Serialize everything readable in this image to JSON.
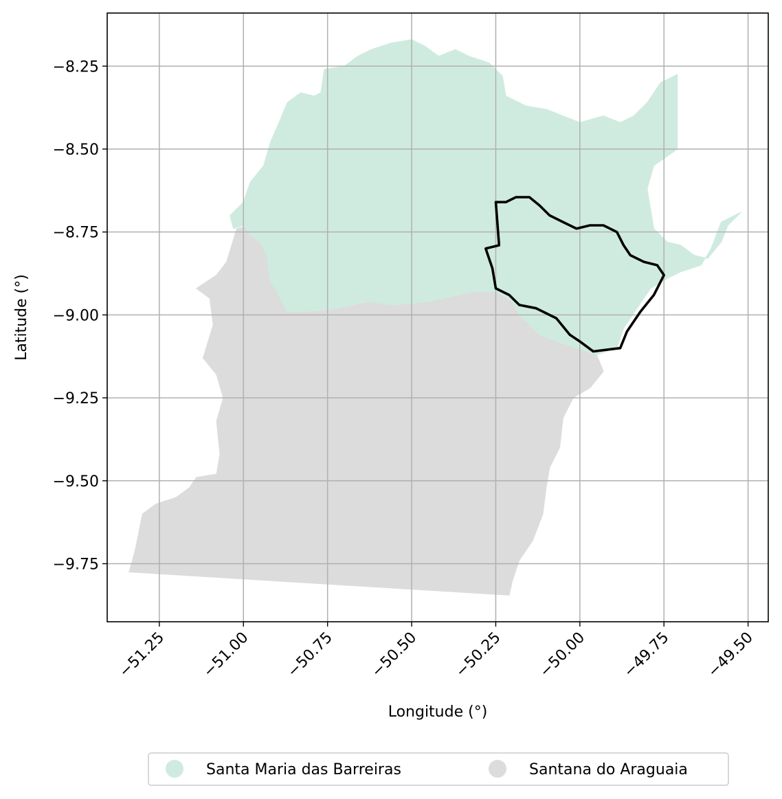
{
  "chart_data": {
    "type": "map",
    "title": "",
    "xlabel": "Longitude (°)",
    "ylabel": "Latitude (°)",
    "xlim": [
      -51.405,
      -49.44
    ],
    "ylim": [
      -9.925,
      -8.09
    ],
    "grid": true,
    "legend_placement": "bottom-center",
    "x_ticks": [
      -51.25,
      -51.0,
      -50.75,
      -50.5,
      -50.25,
      -50.0,
      -49.75,
      -49.5
    ],
    "x_tick_labels": [
      "−51.25",
      "−51.00",
      "−50.75",
      "−50.50",
      "−50.25",
      "−50.00",
      "−49.75",
      "−49.50"
    ],
    "y_ticks": [
      -8.25,
      -8.5,
      -8.75,
      -9.0,
      -9.25,
      -9.5,
      -9.75
    ],
    "y_tick_labels": [
      "−8.25",
      "−8.50",
      "−8.75",
      "−9.00",
      "−9.25",
      "−9.50",
      "−9.75"
    ],
    "regions": [
      {
        "name": "Santa Maria das Barreiras",
        "color": "#cfebdf",
        "boundary": [
          [
            -51.04,
            -8.7
          ],
          [
            -51.0,
            -8.66
          ],
          [
            -50.98,
            -8.6
          ],
          [
            -50.94,
            -8.55
          ],
          [
            -50.92,
            -8.48
          ],
          [
            -50.89,
            -8.41
          ],
          [
            -50.87,
            -8.36
          ],
          [
            -50.83,
            -8.33
          ],
          [
            -50.79,
            -8.34
          ],
          [
            -50.77,
            -8.33
          ],
          [
            -50.76,
            -8.26
          ],
          [
            -50.7,
            -8.25
          ],
          [
            -50.66,
            -8.22
          ],
          [
            -50.62,
            -8.2
          ],
          [
            -50.56,
            -8.18
          ],
          [
            -50.5,
            -8.17
          ],
          [
            -50.46,
            -8.19
          ],
          [
            -50.42,
            -8.22
          ],
          [
            -50.37,
            -8.2
          ],
          [
            -50.33,
            -8.22
          ],
          [
            -50.27,
            -8.24
          ],
          [
            -50.23,
            -8.28
          ],
          [
            -50.22,
            -8.34
          ],
          [
            -50.16,
            -8.37
          ],
          [
            -50.1,
            -8.38
          ],
          [
            -50.05,
            -8.4
          ],
          [
            -50.0,
            -8.42
          ],
          [
            -49.93,
            -8.4
          ],
          [
            -49.88,
            -8.42
          ],
          [
            -49.84,
            -8.4
          ],
          [
            -49.8,
            -8.36
          ],
          [
            -49.76,
            -8.3
          ],
          [
            -49.71,
            -8.275
          ],
          [
            -49.71,
            -8.5
          ],
          [
            -49.78,
            -8.55
          ],
          [
            -49.8,
            -8.62
          ],
          [
            -49.79,
            -8.68
          ],
          [
            -49.78,
            -8.74
          ],
          [
            -49.74,
            -8.78
          ],
          [
            -49.7,
            -8.79
          ],
          [
            -49.66,
            -8.82
          ],
          [
            -49.62,
            -8.83
          ],
          [
            -49.58,
            -8.78
          ],
          [
            -49.56,
            -8.73
          ],
          [
            -49.52,
            -8.69
          ],
          [
            -49.58,
            -8.72
          ],
          [
            -49.61,
            -8.8
          ],
          [
            -49.64,
            -8.85
          ],
          [
            -49.7,
            -8.87
          ],
          [
            -49.74,
            -8.89
          ],
          [
            -49.79,
            -8.92
          ],
          [
            -49.83,
            -8.98
          ],
          [
            -49.87,
            -9.04
          ],
          [
            -49.89,
            -9.1
          ],
          [
            -49.95,
            -9.12
          ],
          [
            -50.04,
            -9.09
          ],
          [
            -50.12,
            -9.06
          ],
          [
            -50.18,
            -9.0
          ],
          [
            -50.2,
            -8.96
          ],
          [
            -50.25,
            -8.93
          ],
          [
            -50.32,
            -8.93
          ],
          [
            -50.45,
            -8.96
          ],
          [
            -50.55,
            -8.97
          ],
          [
            -50.63,
            -8.96
          ],
          [
            -50.72,
            -8.98
          ],
          [
            -50.82,
            -8.99
          ],
          [
            -50.87,
            -8.99
          ],
          [
            -50.9,
            -8.93
          ],
          [
            -50.92,
            -8.9
          ],
          [
            -50.93,
            -8.82
          ],
          [
            -50.95,
            -8.78
          ],
          [
            -50.98,
            -8.76
          ],
          [
            -51.0,
            -8.73
          ],
          [
            -51.03,
            -8.74
          ]
        ]
      },
      {
        "name": "Santana do Araguaia",
        "color": "#dcdcdc",
        "boundary": [
          [
            -51.02,
            -8.74
          ],
          [
            -50.98,
            -8.73
          ],
          [
            -50.95,
            -8.78
          ],
          [
            -50.93,
            -8.82
          ],
          [
            -50.92,
            -8.9
          ],
          [
            -50.9,
            -8.93
          ],
          [
            -50.87,
            -8.99
          ],
          [
            -50.82,
            -8.99
          ],
          [
            -50.72,
            -8.98
          ],
          [
            -50.63,
            -8.96
          ],
          [
            -50.55,
            -8.97
          ],
          [
            -50.45,
            -8.96
          ],
          [
            -50.32,
            -8.93
          ],
          [
            -50.25,
            -8.93
          ],
          [
            -50.2,
            -8.96
          ],
          [
            -50.18,
            -9.0
          ],
          [
            -50.12,
            -9.06
          ],
          [
            -50.04,
            -9.09
          ],
          [
            -49.95,
            -9.12
          ],
          [
            -49.93,
            -9.17
          ],
          [
            -49.97,
            -9.22
          ],
          [
            -50.02,
            -9.25
          ],
          [
            -50.05,
            -9.31
          ],
          [
            -50.06,
            -9.4
          ],
          [
            -50.09,
            -9.46
          ],
          [
            -50.1,
            -9.52
          ],
          [
            -50.11,
            -9.6
          ],
          [
            -50.14,
            -9.68
          ],
          [
            -50.18,
            -9.74
          ],
          [
            -50.2,
            -9.8
          ],
          [
            -50.21,
            -9.845
          ],
          [
            -51.34,
            -9.775
          ],
          [
            -51.33,
            -9.74
          ],
          [
            -51.32,
            -9.7
          ],
          [
            -51.3,
            -9.6
          ],
          [
            -51.26,
            -9.57
          ],
          [
            -51.2,
            -9.55
          ],
          [
            -51.16,
            -9.52
          ],
          [
            -51.14,
            -9.49
          ],
          [
            -51.08,
            -9.48
          ],
          [
            -51.07,
            -9.42
          ],
          [
            -51.08,
            -9.32
          ],
          [
            -51.06,
            -9.25
          ],
          [
            -51.08,
            -9.18
          ],
          [
            -51.12,
            -9.13
          ],
          [
            -51.09,
            -9.03
          ],
          [
            -51.1,
            -8.95
          ],
          [
            -51.14,
            -8.92
          ],
          [
            -51.08,
            -8.88
          ],
          [
            -51.05,
            -8.84
          ]
        ]
      }
    ],
    "highlight_boundary": [
      [
        -50.25,
        -8.66
      ],
      [
        -50.22,
        -8.66
      ],
      [
        -50.19,
        -8.645
      ],
      [
        -50.15,
        -8.645
      ],
      [
        -50.12,
        -8.67
      ],
      [
        -50.09,
        -8.7
      ],
      [
        -50.05,
        -8.72
      ],
      [
        -50.01,
        -8.74
      ],
      [
        -49.97,
        -8.73
      ],
      [
        -49.93,
        -8.73
      ],
      [
        -49.89,
        -8.75
      ],
      [
        -49.87,
        -8.79
      ],
      [
        -49.85,
        -8.82
      ],
      [
        -49.81,
        -8.84
      ],
      [
        -49.77,
        -8.85
      ],
      [
        -49.75,
        -8.88
      ],
      [
        -49.78,
        -8.94
      ],
      [
        -49.82,
        -8.99
      ],
      [
        -49.86,
        -9.05
      ],
      [
        -49.88,
        -9.1
      ],
      [
        -49.96,
        -9.11
      ],
      [
        -50.0,
        -9.08
      ],
      [
        -50.03,
        -9.06
      ],
      [
        -50.07,
        -9.01
      ],
      [
        -50.13,
        -8.98
      ],
      [
        -50.18,
        -8.97
      ],
      [
        -50.21,
        -8.94
      ],
      [
        -50.25,
        -8.92
      ],
      [
        -50.26,
        -8.86
      ],
      [
        -50.28,
        -8.8
      ],
      [
        -50.24,
        -8.79
      ]
    ]
  }
}
